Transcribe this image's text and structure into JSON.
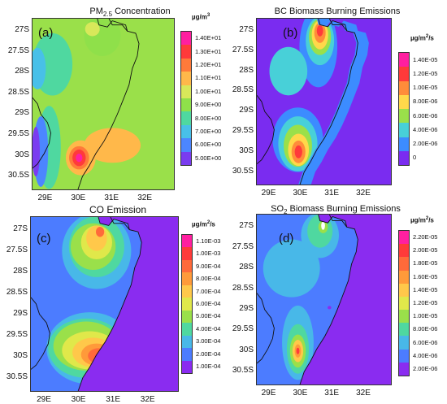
{
  "chart_data": [
    {
      "type": "heatmap",
      "panel_letter": "(a)",
      "title_main": "PM",
      "title_sub": "2.5",
      "title_rest": " Concentration",
      "colorbar_unit": "µg/m",
      "colorbar_unit_sup": "3",
      "colorbar_labels": [
        "1.40E+01",
        "1.30E+01",
        "1.20E+01",
        "1.10E+01",
        "1.00E+01",
        "9.00E+00",
        "8.00E+00",
        "7.00E+00",
        "6.00E+00",
        "5.00E+00"
      ],
      "colorbar_colors": [
        "#ff1fa0",
        "#ff3a3a",
        "#ff7a3a",
        "#ffb84a",
        "#d8e85a",
        "#8fe04a",
        "#4fd8a0",
        "#48c0e8",
        "#4c86ff",
        "#7a3cf0"
      ],
      "yticks": [
        "27S",
        "27.5S",
        "28S",
        "28.5S",
        "29S",
        "29.5S",
        "30S",
        "30.5S"
      ],
      "xticks": [
        "29E",
        "30E",
        "31E",
        "32E"
      ],
      "field": {
        "background": "#9ae04a",
        "blobs": [
          {
            "lon": 30.0,
            "lat": -30.05,
            "rx": 0.12,
            "ry": 0.12,
            "value": 14.0
          },
          {
            "lon": 30.0,
            "lat": -30.05,
            "rx": 0.22,
            "ry": 0.22,
            "value": 13.0
          },
          {
            "lon": 30.0,
            "lat": -30.05,
            "rx": 0.34,
            "ry": 0.32,
            "value": 12.0
          },
          {
            "lon": 29.25,
            "lat": -29.6,
            "rx": 0.45,
            "ry": 0.8,
            "value": 7.0
          },
          {
            "lon": 29.0,
            "lat": -29.8,
            "rx": 0.25,
            "ry": 0.9,
            "value": 6.0
          },
          {
            "lon": 29.0,
            "lat": -29.8,
            "rx": 0.15,
            "ry": 0.6,
            "value": 5.0
          },
          {
            "lon": 28.9,
            "lat": -27.7,
            "rx": 0.35,
            "ry": 0.5,
            "value": 7.0
          },
          {
            "lon": 29.2,
            "lat": -28.1,
            "rx": 0.5,
            "ry": 0.55,
            "value": 8.0
          },
          {
            "lon": 30.7,
            "lat": -26.95,
            "rx": 0.3,
            "ry": 0.22,
            "value": 8.0
          },
          {
            "lon": 30.4,
            "lat": -26.95,
            "rx": 0.12,
            "ry": 0.12,
            "value": 9.0
          }
        ],
        "band": {
          "lon": 30.9,
          "lat": -29.75,
          "rx": 0.9,
          "ry": 0.42,
          "value": 10.5
        }
      }
    },
    {
      "type": "heatmap",
      "panel_letter": "(b)",
      "title_main": "BC Biomass Burning Emissions",
      "title_sub": "",
      "title_rest": "",
      "colorbar_unit": "µg/m",
      "colorbar_unit_sup": "2",
      "colorbar_unit_rest": "/s",
      "colorbar_labels": [
        "1.40E-05",
        "1.20E-05",
        "1.00E-05",
        "8.00E-06",
        "6.00E-06",
        "4.00E-06",
        "2.00E-06",
        "0"
      ],
      "colorbar_colors": [
        "#ff1fa0",
        "#ff3a3a",
        "#ff8c3a",
        "#ffd84a",
        "#9ae04a",
        "#48d0d8",
        "#3c8cff",
        "#7a2cf0"
      ],
      "yticks": [
        "27S",
        "27.5S",
        "28S",
        "28.5S",
        "29S",
        "29.5S",
        "30S",
        "30.5S"
      ],
      "xticks": [
        "29E",
        "30E",
        "31E",
        "32E"
      ]
    },
    {
      "type": "heatmap",
      "panel_letter": "(c)",
      "title_main": "CO Emission",
      "title_sub": "",
      "title_rest": "",
      "colorbar_unit": "µg/m",
      "colorbar_unit_sup": "2",
      "colorbar_unit_rest": "/s",
      "colorbar_labels": [
        "1.10E-03",
        "1.00E-03",
        "9.00E-04",
        "8.00E-04",
        "7.00E-04",
        "6.00E-04",
        "5.00E-04",
        "4.00E-04",
        "3.00E-04",
        "2.00E-04",
        "1.00E-04"
      ],
      "colorbar_colors": [
        "#ff1fa0",
        "#ff3a3a",
        "#ff6a3a",
        "#ff9a3a",
        "#ffc84a",
        "#e0e84a",
        "#9ae04a",
        "#4fd8a0",
        "#48b8e8",
        "#4c7cff",
        "#8a2cf0"
      ],
      "yticks": [
        "27S",
        "27.5S",
        "28S",
        "28.5S",
        "29S",
        "29.5S",
        "30S",
        "30.5S"
      ],
      "xticks": [
        "29E",
        "30E",
        "31E",
        "32E"
      ]
    },
    {
      "type": "heatmap",
      "panel_letter": "(d)",
      "title_main": "SO",
      "title_sub": "2",
      "title_rest": " Biomass Burning Emissions",
      "colorbar_unit": "µg/m",
      "colorbar_unit_sup": "2",
      "colorbar_unit_rest": "/s",
      "colorbar_labels": [
        "2.20E-05",
        "2.00E-05",
        "1.80E-05",
        "1.60E-05",
        "1.40E-05",
        "1.20E-05",
        "1.00E-05",
        "8.00E-06",
        "6.00E-06",
        "4.00E-06",
        "2.00E-06"
      ],
      "colorbar_colors": [
        "#ff1fa0",
        "#ff3a3a",
        "#ff6a3a",
        "#ff9a3a",
        "#ffc84a",
        "#e0e84a",
        "#9ae04a",
        "#4fd8a0",
        "#48b8e8",
        "#4c7cff",
        "#8a2cf0"
      ],
      "yticks": [
        "27S",
        "27.5S",
        "28S",
        "28.5S",
        "29S",
        "29.5S",
        "30S",
        "30.5S"
      ],
      "xticks": [
        "29E",
        "30E",
        "31E",
        "32E"
      ]
    }
  ],
  "map": {
    "lon_range": [
      28.6,
      32.9
    ],
    "lat_range": [
      -30.85,
      -26.7
    ]
  }
}
